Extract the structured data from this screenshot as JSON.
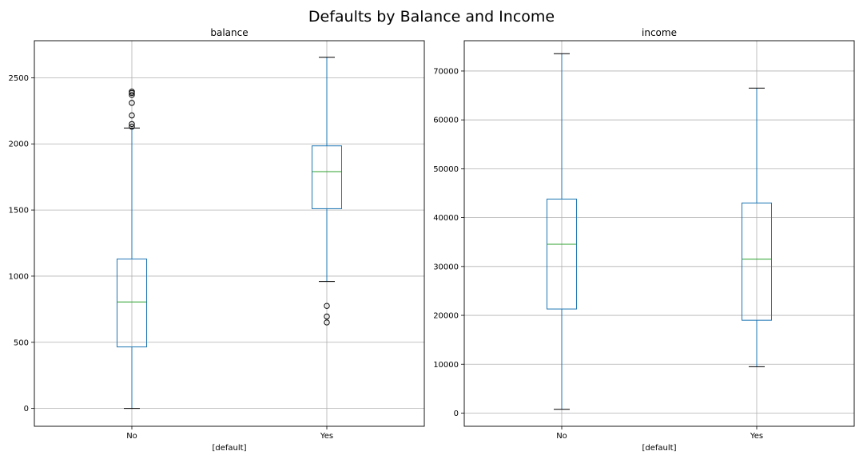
{
  "figure": {
    "title": "Defaults by Balance and Income"
  },
  "chart_data": [
    {
      "type": "box",
      "title": "balance",
      "xlabel": "[default]",
      "ylabel": "",
      "categories": [
        "No",
        "Yes"
      ],
      "ylim": [
        -135,
        2780
      ],
      "yticks": [
        0,
        500,
        1000,
        1500,
        2000,
        2500
      ],
      "grid": true,
      "boxes": [
        {
          "category": "No",
          "whisker_low": 0,
          "q1": 465,
          "median": 805,
          "q3": 1130,
          "whisker_high": 2120,
          "outliers": [
            2130,
            2150,
            2215,
            2310,
            2370,
            2385,
            2395
          ]
        },
        {
          "category": "Yes",
          "whisker_low": 960,
          "q1": 1510,
          "median": 1790,
          "q3": 1985,
          "whisker_high": 2655,
          "outliers": [
            775,
            695,
            650
          ]
        }
      ]
    },
    {
      "type": "box",
      "title": "income",
      "xlabel": "[default]",
      "ylabel": "",
      "categories": [
        "No",
        "Yes"
      ],
      "ylim": [
        -2700,
        76200
      ],
      "yticks": [
        0,
        10000,
        20000,
        30000,
        40000,
        50000,
        60000,
        70000
      ],
      "grid": true,
      "boxes": [
        {
          "category": "No",
          "whisker_low": 770,
          "q1": 21300,
          "median": 34550,
          "q3": 43800,
          "whisker_high": 73550,
          "outliers": []
        },
        {
          "category": "Yes",
          "whisker_low": 9500,
          "q1": 19000,
          "median": 31500,
          "q3": 43000,
          "whisker_high": 66500,
          "outliers": []
        }
      ]
    }
  ],
  "colors": {
    "box": "#1f77b4",
    "median": "#2ca02c",
    "whisker": "#1f77b4",
    "cap": "#000000",
    "outlier": "#000000",
    "grid": "#b0b0b0",
    "axes": "#000000"
  }
}
